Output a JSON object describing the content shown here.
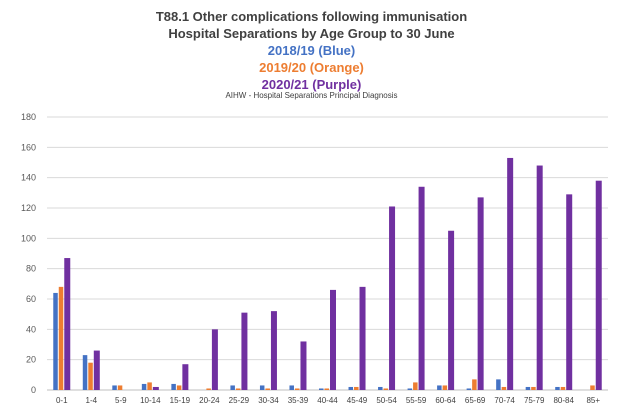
{
  "title_lines": [
    {
      "text": "T88.1 Other complications following immunisation",
      "color": "#404040"
    },
    {
      "text": "Hospital Separations by Age Group to 30 June",
      "color": "#404040"
    },
    {
      "text": "2018/19 (Blue)",
      "color": "#4472C4"
    },
    {
      "text": "2019/20 (Orange)",
      "color": "#ED7D31"
    },
    {
      "text": "2020/21 (Purple)",
      "color": "#7030A0"
    }
  ],
  "subtitle": "AIHW - Hospital Separations Principal Diagnosis",
  "chart_data": {
    "type": "bar",
    "title": "T88.1 Other complications following immunisation Hospital Separations by Age Group to 30 June",
    "subtitle": "AIHW - Hospital Separations Principal Diagnosis",
    "xlabel": "",
    "ylabel": "",
    "ylim": [
      0,
      180
    ],
    "yticks": [
      0,
      20,
      40,
      60,
      80,
      100,
      120,
      140,
      160,
      180
    ],
    "grid": true,
    "legend": "none",
    "categories": [
      "0-1",
      "1-4",
      "5-9",
      "10-14",
      "15-19",
      "20-24",
      "25-29",
      "30-34",
      "35-39",
      "40-44",
      "45-49",
      "50-54",
      "55-59",
      "60-64",
      "65-69",
      "70-74",
      "75-79",
      "80-84",
      "85+"
    ],
    "series": [
      {
        "name": "2018/19",
        "color": "#4472C4",
        "values": [
          64,
          23,
          3,
          4,
          4,
          0,
          3,
          3,
          3,
          1,
          2,
          2,
          1,
          3,
          1,
          7,
          2,
          2,
          0
        ]
      },
      {
        "name": "2019/20",
        "color": "#ED7D31",
        "values": [
          68,
          18,
          3,
          5,
          3,
          1,
          1,
          1,
          1,
          1,
          2,
          1,
          5,
          3,
          7,
          2,
          2,
          2,
          3
        ]
      },
      {
        "name": "2020/21",
        "color": "#7030A0",
        "values": [
          87,
          26,
          0,
          2,
          17,
          40,
          51,
          52,
          32,
          66,
          68,
          121,
          134,
          105,
          127,
          153,
          148,
          129,
          138
        ]
      }
    ]
  }
}
